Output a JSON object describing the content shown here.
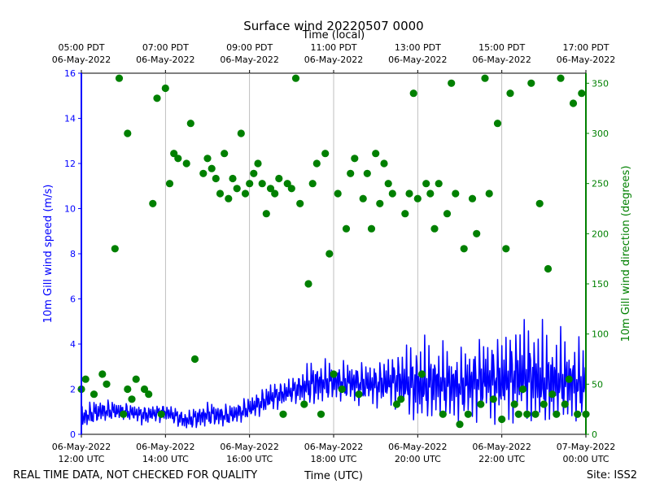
{
  "chart_data": {
    "type": "scatter",
    "title": "Surface wind 20220507 0000",
    "xlabel": "Time (UTC)",
    "xlabel_top": "Time (local)",
    "ylabel_left": "10m Gill wind speed (m/s)",
    "ylabel_right": "10m Gill wind direction (degrees)",
    "x_range_hours": [
      0,
      12
    ],
    "ylim_left": [
      0,
      16
    ],
    "ylim_right": [
      0,
      360
    ],
    "yticks_left": [
      "0",
      "2",
      "4",
      "6",
      "8",
      "10",
      "12",
      "14",
      "16"
    ],
    "yticks_right": [
      "0",
      "50",
      "100",
      "150",
      "200",
      "250",
      "300",
      "350"
    ],
    "xticks_bottom": [
      {
        "date": "06-May-2022",
        "time": "12:00 UTC"
      },
      {
        "date": "06-May-2022",
        "time": "14:00 UTC"
      },
      {
        "date": "06-May-2022",
        "time": "16:00 UTC"
      },
      {
        "date": "06-May-2022",
        "time": "18:00 UTC"
      },
      {
        "date": "06-May-2022",
        "time": "20:00 UTC"
      },
      {
        "date": "06-May-2022",
        "time": "22:00 UTC"
      },
      {
        "date": "07-May-2022",
        "time": "00:00 UTC"
      }
    ],
    "xticks_top": [
      {
        "time": "05:00 PDT",
        "date": "06-May-2022"
      },
      {
        "time": "07:00 PDT",
        "date": "06-May-2022"
      },
      {
        "time": "09:00 PDT",
        "date": "06-May-2022"
      },
      {
        "time": "11:00 PDT",
        "date": "06-May-2022"
      },
      {
        "time": "13:00 PDT",
        "date": "06-May-2022"
      },
      {
        "time": "15:00 PDT",
        "date": "06-May-2022"
      },
      {
        "time": "17:00 PDT",
        "date": "06-May-2022"
      }
    ],
    "grid": "vertical",
    "series": [
      {
        "name": "10m Gill wind speed",
        "axis": "left",
        "kind": "line",
        "color": "#0000ff",
        "x": [
          0.0,
          0.5,
          1.0,
          1.5,
          2.0,
          2.5,
          3.0,
          3.5,
          4.0,
          4.5,
          5.0,
          5.5,
          6.0,
          6.5,
          7.0,
          7.5,
          8.0,
          8.5,
          9.0,
          9.5,
          10.0,
          10.5,
          11.0,
          11.5,
          12.0
        ],
        "values": [
          0.7,
          1.0,
          1.0,
          0.9,
          1.0,
          0.6,
          0.9,
          0.8,
          1.1,
          1.6,
          1.9,
          2.2,
          2.3,
          2.3,
          2.2,
          2.4,
          2.0,
          2.2,
          2.1,
          2.5,
          2.4,
          2.6,
          2.1,
          2.3,
          2.1
        ],
        "max_values": [
          1.5,
          1.7,
          1.5,
          1.3,
          1.4,
          1.1,
          1.5,
          1.4,
          1.8,
          2.4,
          2.6,
          3.5,
          3.4,
          3.3,
          3.3,
          3.8,
          4.7,
          4.3,
          3.9,
          4.4,
          4.6,
          5.4,
          5.2,
          4.7,
          4.2
        ],
        "min_values": [
          0.2,
          0.5,
          0.6,
          0.3,
          0.5,
          0.1,
          0.2,
          0.3,
          0.6,
          0.9,
          1.3,
          1.1,
          1.4,
          1.2,
          1.1,
          1.0,
          0.3,
          0.6,
          0.3,
          0.4,
          0.3,
          0.4,
          0.3,
          0.4,
          0.3
        ]
      },
      {
        "name": "10m Gill wind direction",
        "axis": "right",
        "kind": "scatter",
        "color": "#008000",
        "x": [
          0.0,
          0.1,
          0.3,
          0.5,
          0.6,
          0.8,
          0.9,
          1.0,
          1.1,
          1.1,
          1.2,
          1.3,
          1.5,
          1.6,
          1.7,
          1.8,
          1.9,
          2.0,
          2.1,
          2.2,
          2.3,
          2.5,
          2.6,
          2.7,
          2.9,
          3.0,
          3.1,
          3.2,
          3.3,
          3.4,
          3.5,
          3.6,
          3.7,
          3.8,
          3.9,
          4.0,
          4.1,
          4.2,
          4.3,
          4.4,
          4.5,
          4.6,
          4.7,
          4.8,
          4.9,
          5.0,
          5.1,
          5.2,
          5.3,
          5.4,
          5.5,
          5.6,
          5.7,
          5.8,
          5.9,
          6.0,
          6.1,
          6.2,
          6.3,
          6.4,
          6.5,
          6.6,
          6.7,
          6.8,
          6.9,
          7.0,
          7.1,
          7.2,
          7.3,
          7.4,
          7.5,
          7.6,
          7.7,
          7.8,
          7.9,
          8.0,
          8.1,
          8.2,
          8.3,
          8.4,
          8.5,
          8.6,
          8.7,
          8.8,
          8.9,
          9.0,
          9.1,
          9.2,
          9.3,
          9.4,
          9.5,
          9.6,
          9.7,
          9.8,
          9.9,
          10.0,
          10.1,
          10.2,
          10.3,
          10.4,
          10.5,
          10.6,
          10.7,
          10.8,
          10.9,
          11.0,
          11.1,
          11.2,
          11.3,
          11.4,
          11.5,
          11.6,
          11.7,
          11.8,
          11.9,
          12.0
        ],
        "values": [
          45,
          55,
          40,
          60,
          50,
          185,
          355,
          20,
          45,
          300,
          35,
          55,
          45,
          40,
          230,
          335,
          20,
          345,
          250,
          280,
          275,
          270,
          310,
          75,
          260,
          275,
          265,
          255,
          240,
          280,
          235,
          255,
          245,
          300,
          240,
          250,
          260,
          270,
          250,
          220,
          245,
          240,
          255,
          20,
          250,
          245,
          355,
          230,
          30,
          150,
          250,
          270,
          20,
          280,
          180,
          60,
          240,
          45,
          205,
          260,
          275,
          40,
          235,
          260,
          205,
          280,
          230,
          270,
          250,
          240,
          30,
          35,
          220,
          240,
          340,
          235,
          60,
          250,
          240,
          205,
          250,
          20,
          220,
          350,
          240,
          10,
          185,
          20,
          235,
          200,
          30,
          355,
          240,
          35,
          310,
          15,
          185,
          340,
          30,
          20,
          45,
          20,
          350,
          20,
          230,
          30,
          165,
          40,
          20,
          355,
          30,
          55,
          330,
          20,
          340,
          20
        ]
      }
    ]
  },
  "footer": {
    "left_note": "REAL TIME DATA, NOT CHECKED FOR QUALITY",
    "site": "Site: ISS2"
  },
  "colors": {
    "speed": "#0000ff",
    "direction": "#008000",
    "grid": "#b0b0b0"
  }
}
